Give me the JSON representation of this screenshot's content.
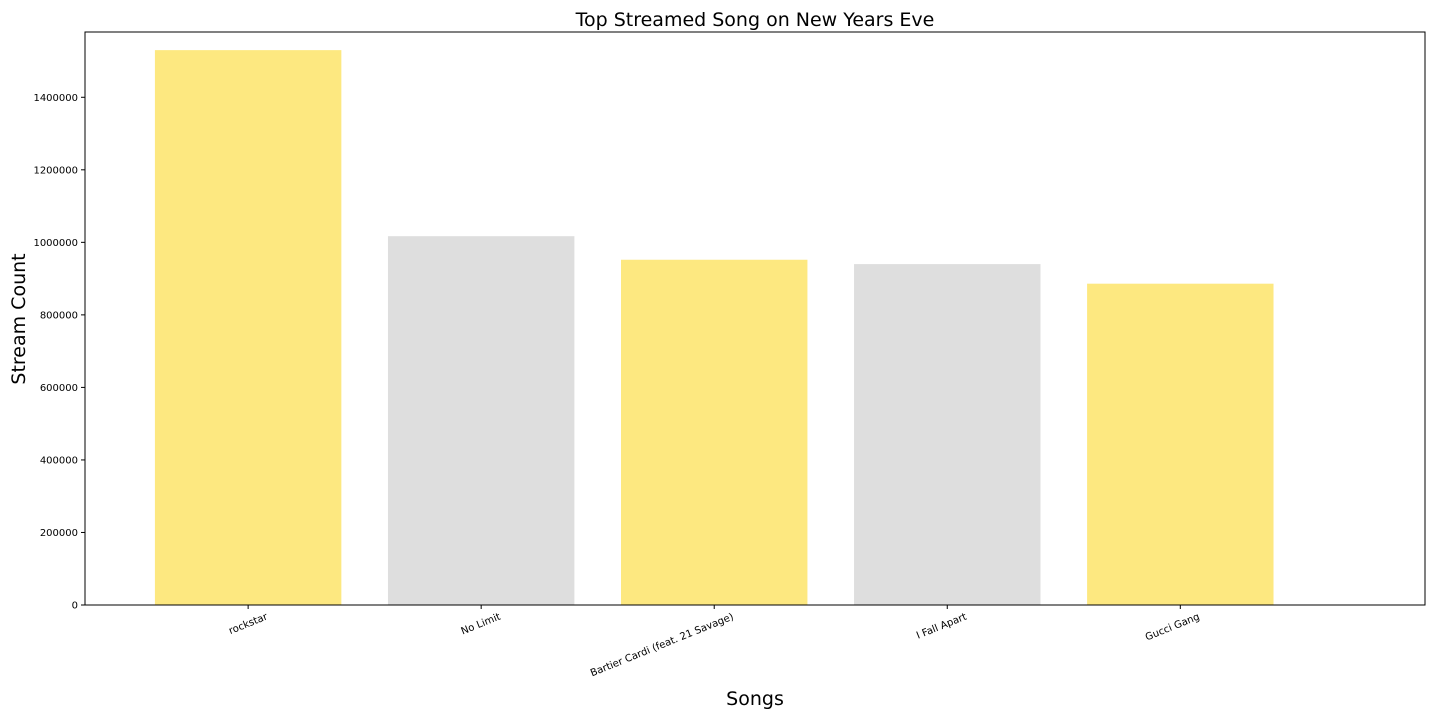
{
  "chart_data": {
    "type": "bar",
    "title": "Top Streamed Song on New Years Eve",
    "xlabel": "Songs",
    "ylabel": "Stream Count",
    "categories": [
      "rockstar",
      "No Limit",
      "Bartier Cardi (feat. 21 Savage)",
      "I Fall Apart",
      "Gucci Gang"
    ],
    "values": [
      1530000,
      1017000,
      952000,
      940000,
      886000
    ],
    "bar_colors": [
      "#fde880",
      "#dedede",
      "#fde880",
      "#dedede",
      "#fde880"
    ],
    "ylim": [
      0,
      1580000
    ],
    "yticks": [
      0,
      200000,
      400000,
      600000,
      800000,
      1000000,
      1200000,
      1400000
    ],
    "ytick_labels": [
      "0",
      "200000",
      "400000",
      "600000",
      "800000",
      "1000000",
      "1200000",
      "1400000"
    ],
    "grid": false,
    "legend": "none"
  }
}
